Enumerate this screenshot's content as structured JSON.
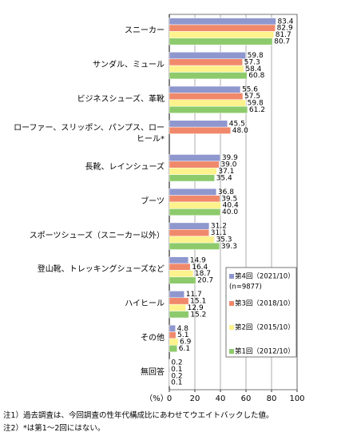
{
  "chart_data": {
    "type": "hbar",
    "categories": [
      "スニーカー",
      "サンダル、ミュール",
      "ビジネスシューズ、革靴",
      "ローファー、スリッポン、パンプス、ロー\nヒール*",
      "長靴、レインシューズ",
      "ブーツ",
      "スポーツシューズ（スニーカー以外）",
      "登山靴、トレッキングシューズなど",
      "ハイヒール",
      "その他",
      "無回答"
    ],
    "series": [
      {
        "name": "第4回（2021/10）",
        "note": "(n=9877)",
        "color": "#8f97cf",
        "values": [
          83.4,
          59.8,
          55.6,
          45.5,
          39.9,
          36.8,
          31.2,
          14.9,
          11.7,
          4.8,
          0.2
        ],
        "value_labels": [
          "83.4",
          "59.8",
          "55.6",
          "45.5",
          "39.9",
          "36.8",
          "31.2",
          "14.9",
          "11.7",
          "4.8",
          "0.2"
        ]
      },
      {
        "name": "第3回（2018/10）",
        "color": "#f0896b",
        "values": [
          82.9,
          57.3,
          57.5,
          48.0,
          39.0,
          39.5,
          31.1,
          16.4,
          15.1,
          5.1,
          0.1
        ],
        "value_labels": [
          "82.9",
          "57.3",
          "57.5",
          "48.0",
          "39.0",
          "39.5",
          "31.1",
          "16.4",
          "15.1",
          "5.1",
          "0.1"
        ]
      },
      {
        "name": "第2回（2015/10）",
        "color": "#fdf28c",
        "values": [
          81.7,
          58.4,
          59.8,
          null,
          37.1,
          40.4,
          35.3,
          18.7,
          12.9,
          6.9,
          0.2
        ],
        "value_labels": [
          "81.7",
          "58.4",
          "59.8",
          null,
          "37.1",
          "40.4",
          "35.3",
          "18.7",
          "12.9",
          "6.9",
          "0.2"
        ]
      },
      {
        "name": "第1回（2012/10）",
        "color": "#8dca6c",
        "values": [
          80.7,
          60.8,
          61.2,
          null,
          35.4,
          40.0,
          39.3,
          20.7,
          15.2,
          6.1,
          0.1
        ],
        "value_labels": [
          "80.7",
          "60.8",
          "61.2",
          null,
          "35.4",
          "40.0",
          "39.3",
          "20.7",
          "15.2",
          "6.1",
          "0.1"
        ]
      }
    ],
    "xlabel": "（%）",
    "xlim": [
      0,
      100
    ],
    "xticks": [
      0,
      20,
      40,
      60,
      80,
      100
    ],
    "grid": true,
    "notes": [
      "注1）過去調査は、今回調査の性年代構成比にあわせてウエイトバックした値。",
      "注2）*は第1～2回にはない。"
    ]
  }
}
